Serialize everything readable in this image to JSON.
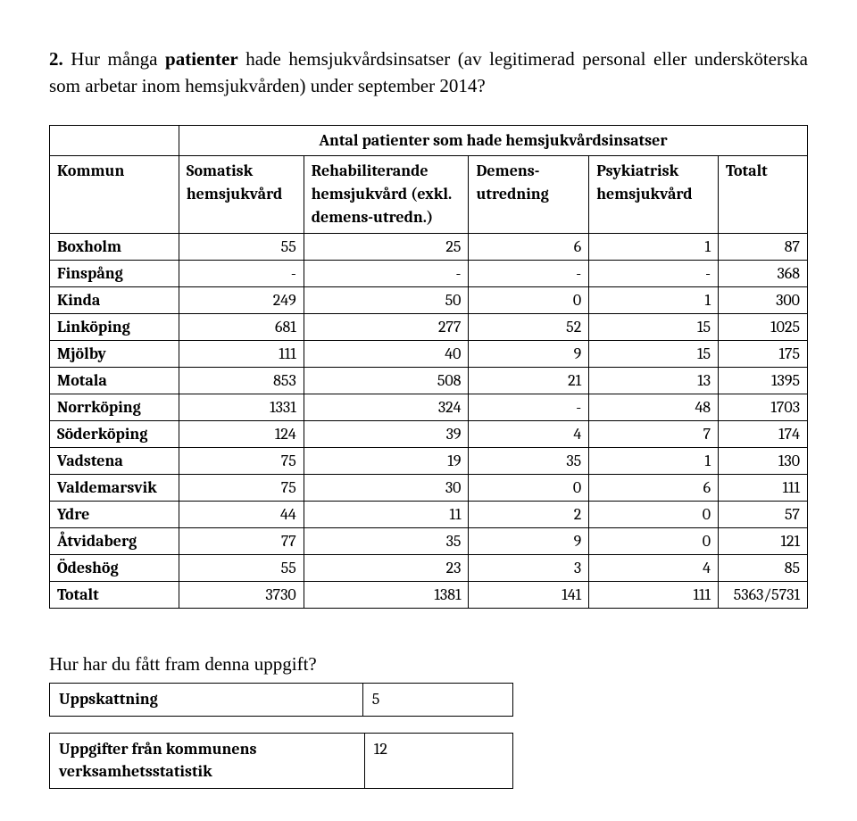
{
  "question": {
    "prefix_bold": "2.",
    "seg1": " Hur många ",
    "bold1": "patienter",
    "seg2": " hade hemsjukvårdsinsatser (av legitimerad personal eller undersköterska som arbetar inom hemsjukvården) under september 2014?"
  },
  "main_table": {
    "superheader": "Antal patienter som hade hemsjukvårdsinsatser",
    "columns": {
      "c0": "Kommun",
      "c1": "Somatisk hemsjukvård",
      "c2": "Rehabiliterande hemsjukvård (exkl. demens-utredn.)",
      "c3": "Demens-utredning",
      "c4": "Psykiatrisk hemsjukvård",
      "c5": "Totalt"
    },
    "rows": [
      {
        "label": "Boxholm",
        "v": [
          "55",
          "25",
          "6",
          "1",
          "87"
        ]
      },
      {
        "label": "Finspång",
        "v": [
          "-",
          "-",
          "-",
          "-",
          "368"
        ]
      },
      {
        "label": "Kinda",
        "v": [
          "249",
          "50",
          "0",
          "1",
          "300"
        ]
      },
      {
        "label": "Linköping",
        "v": [
          "681",
          "277",
          "52",
          "15",
          "1025"
        ]
      },
      {
        "label": "Mjölby",
        "v": [
          "111",
          "40",
          "9",
          "15",
          "175"
        ]
      },
      {
        "label": "Motala",
        "v": [
          "853",
          "508",
          "21",
          "13",
          "1395"
        ]
      },
      {
        "label": "Norrköping",
        "v": [
          "1331",
          "324",
          "-",
          "48",
          "1703"
        ]
      },
      {
        "label": "Söderköping",
        "v": [
          "124",
          "39",
          "4",
          "7",
          "174"
        ]
      },
      {
        "label": "Vadstena",
        "v": [
          "75",
          "19",
          "35",
          "1",
          "130"
        ]
      },
      {
        "label": "Valdemarsvik",
        "v": [
          "75",
          "30",
          "0",
          "6",
          "111"
        ]
      },
      {
        "label": "Ydre",
        "v": [
          "44",
          "11",
          "2",
          "0",
          "57"
        ]
      },
      {
        "label": "Åtvidaberg",
        "v": [
          "77",
          "35",
          "9",
          "0",
          "121"
        ]
      },
      {
        "label": "Ödeshög",
        "v": [
          "55",
          "23",
          "3",
          "4",
          "85"
        ]
      }
    ],
    "total_row": {
      "label": "Totalt",
      "v": [
        "3730",
        "1381",
        "141",
        "111",
        "5363/5731"
      ]
    }
  },
  "sub": {
    "heading": "Hur har du fått fram denna uppgift?",
    "rows": [
      {
        "label": "Uppskattning",
        "value": "5"
      },
      {
        "label": "Uppgifter från kommunens verksamhetsstatistik",
        "value": "12"
      }
    ]
  }
}
